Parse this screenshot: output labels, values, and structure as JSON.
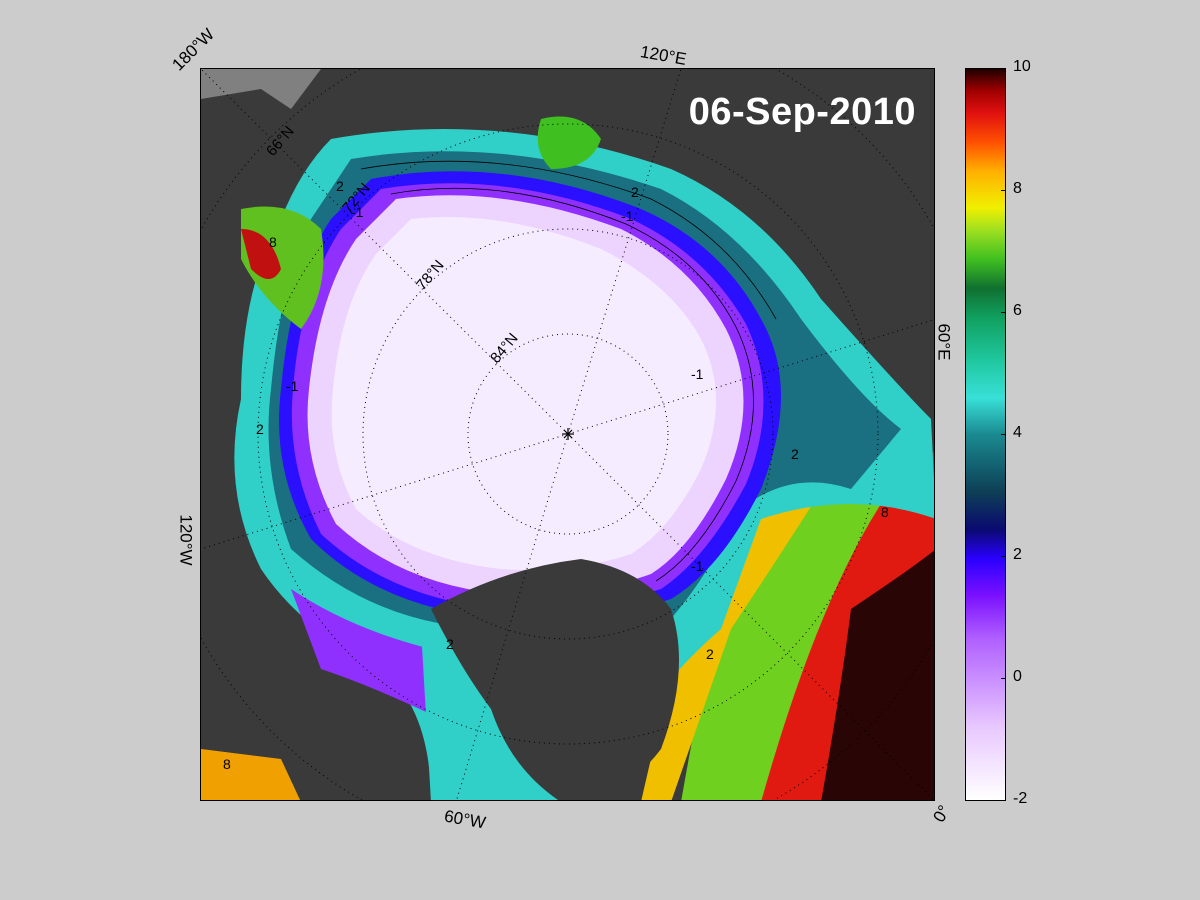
{
  "title": "06-Sep-2010",
  "longitude_labels": {
    "w180": "180°W",
    "e120": "120°E",
    "e60": "60°E",
    "w120": "120°W",
    "w60": "60°W",
    "zero": "0°"
  },
  "latitude_labels": {
    "n66": "66°N",
    "n72": "72°N",
    "n78": "78°N",
    "n84": "84°N"
  },
  "contour_labels": [
    "-1",
    "2",
    "8",
    "-1",
    "2",
    "-1",
    "2",
    "-1",
    "2",
    "8",
    "-1",
    "2",
    "2",
    "8"
  ],
  "colorbar": {
    "ticks": [
      "10",
      "8",
      "6",
      "4",
      "2",
      "0",
      "-2"
    ],
    "min": -2,
    "max": 10
  },
  "colors": {
    "background": "#cccccc",
    "land": "#3a3a3a",
    "ice": "#f6ecff",
    "ice_edge": "#8a20ff",
    "warm": "#d01010"
  }
}
